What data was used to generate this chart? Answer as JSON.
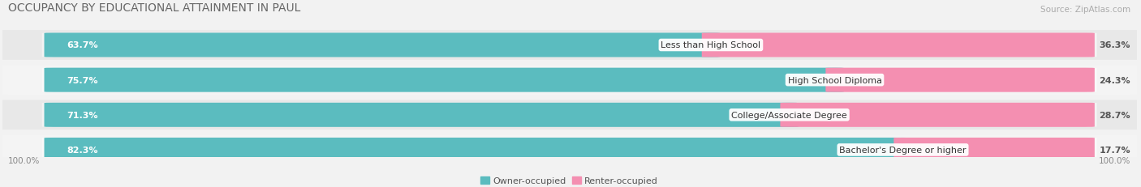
{
  "title": "OCCUPANCY BY EDUCATIONAL ATTAINMENT IN PAUL",
  "source": "Source: ZipAtlas.com",
  "categories": [
    "Less than High School",
    "High School Diploma",
    "College/Associate Degree",
    "Bachelor's Degree or higher"
  ],
  "owner_pct": [
    63.7,
    75.7,
    71.3,
    82.3
  ],
  "renter_pct": [
    36.3,
    24.3,
    28.7,
    17.7
  ],
  "owner_color": "#5bbcbf",
  "renter_color": "#f48fb1",
  "bg_color": "#f2f2f2",
  "row_colors": [
    "#e8e8e8",
    "#f4f4f4",
    "#e8e8e8",
    "#f4f4f4"
  ],
  "title_fontsize": 10,
  "source_fontsize": 7.5,
  "bar_label_fontsize": 8,
  "cat_label_fontsize": 8,
  "pct_label_fontsize": 8,
  "legend_fontsize": 8,
  "axis_label_fontsize": 7.5,
  "left_axis_label": "100.0%",
  "right_axis_label": "100.0%"
}
